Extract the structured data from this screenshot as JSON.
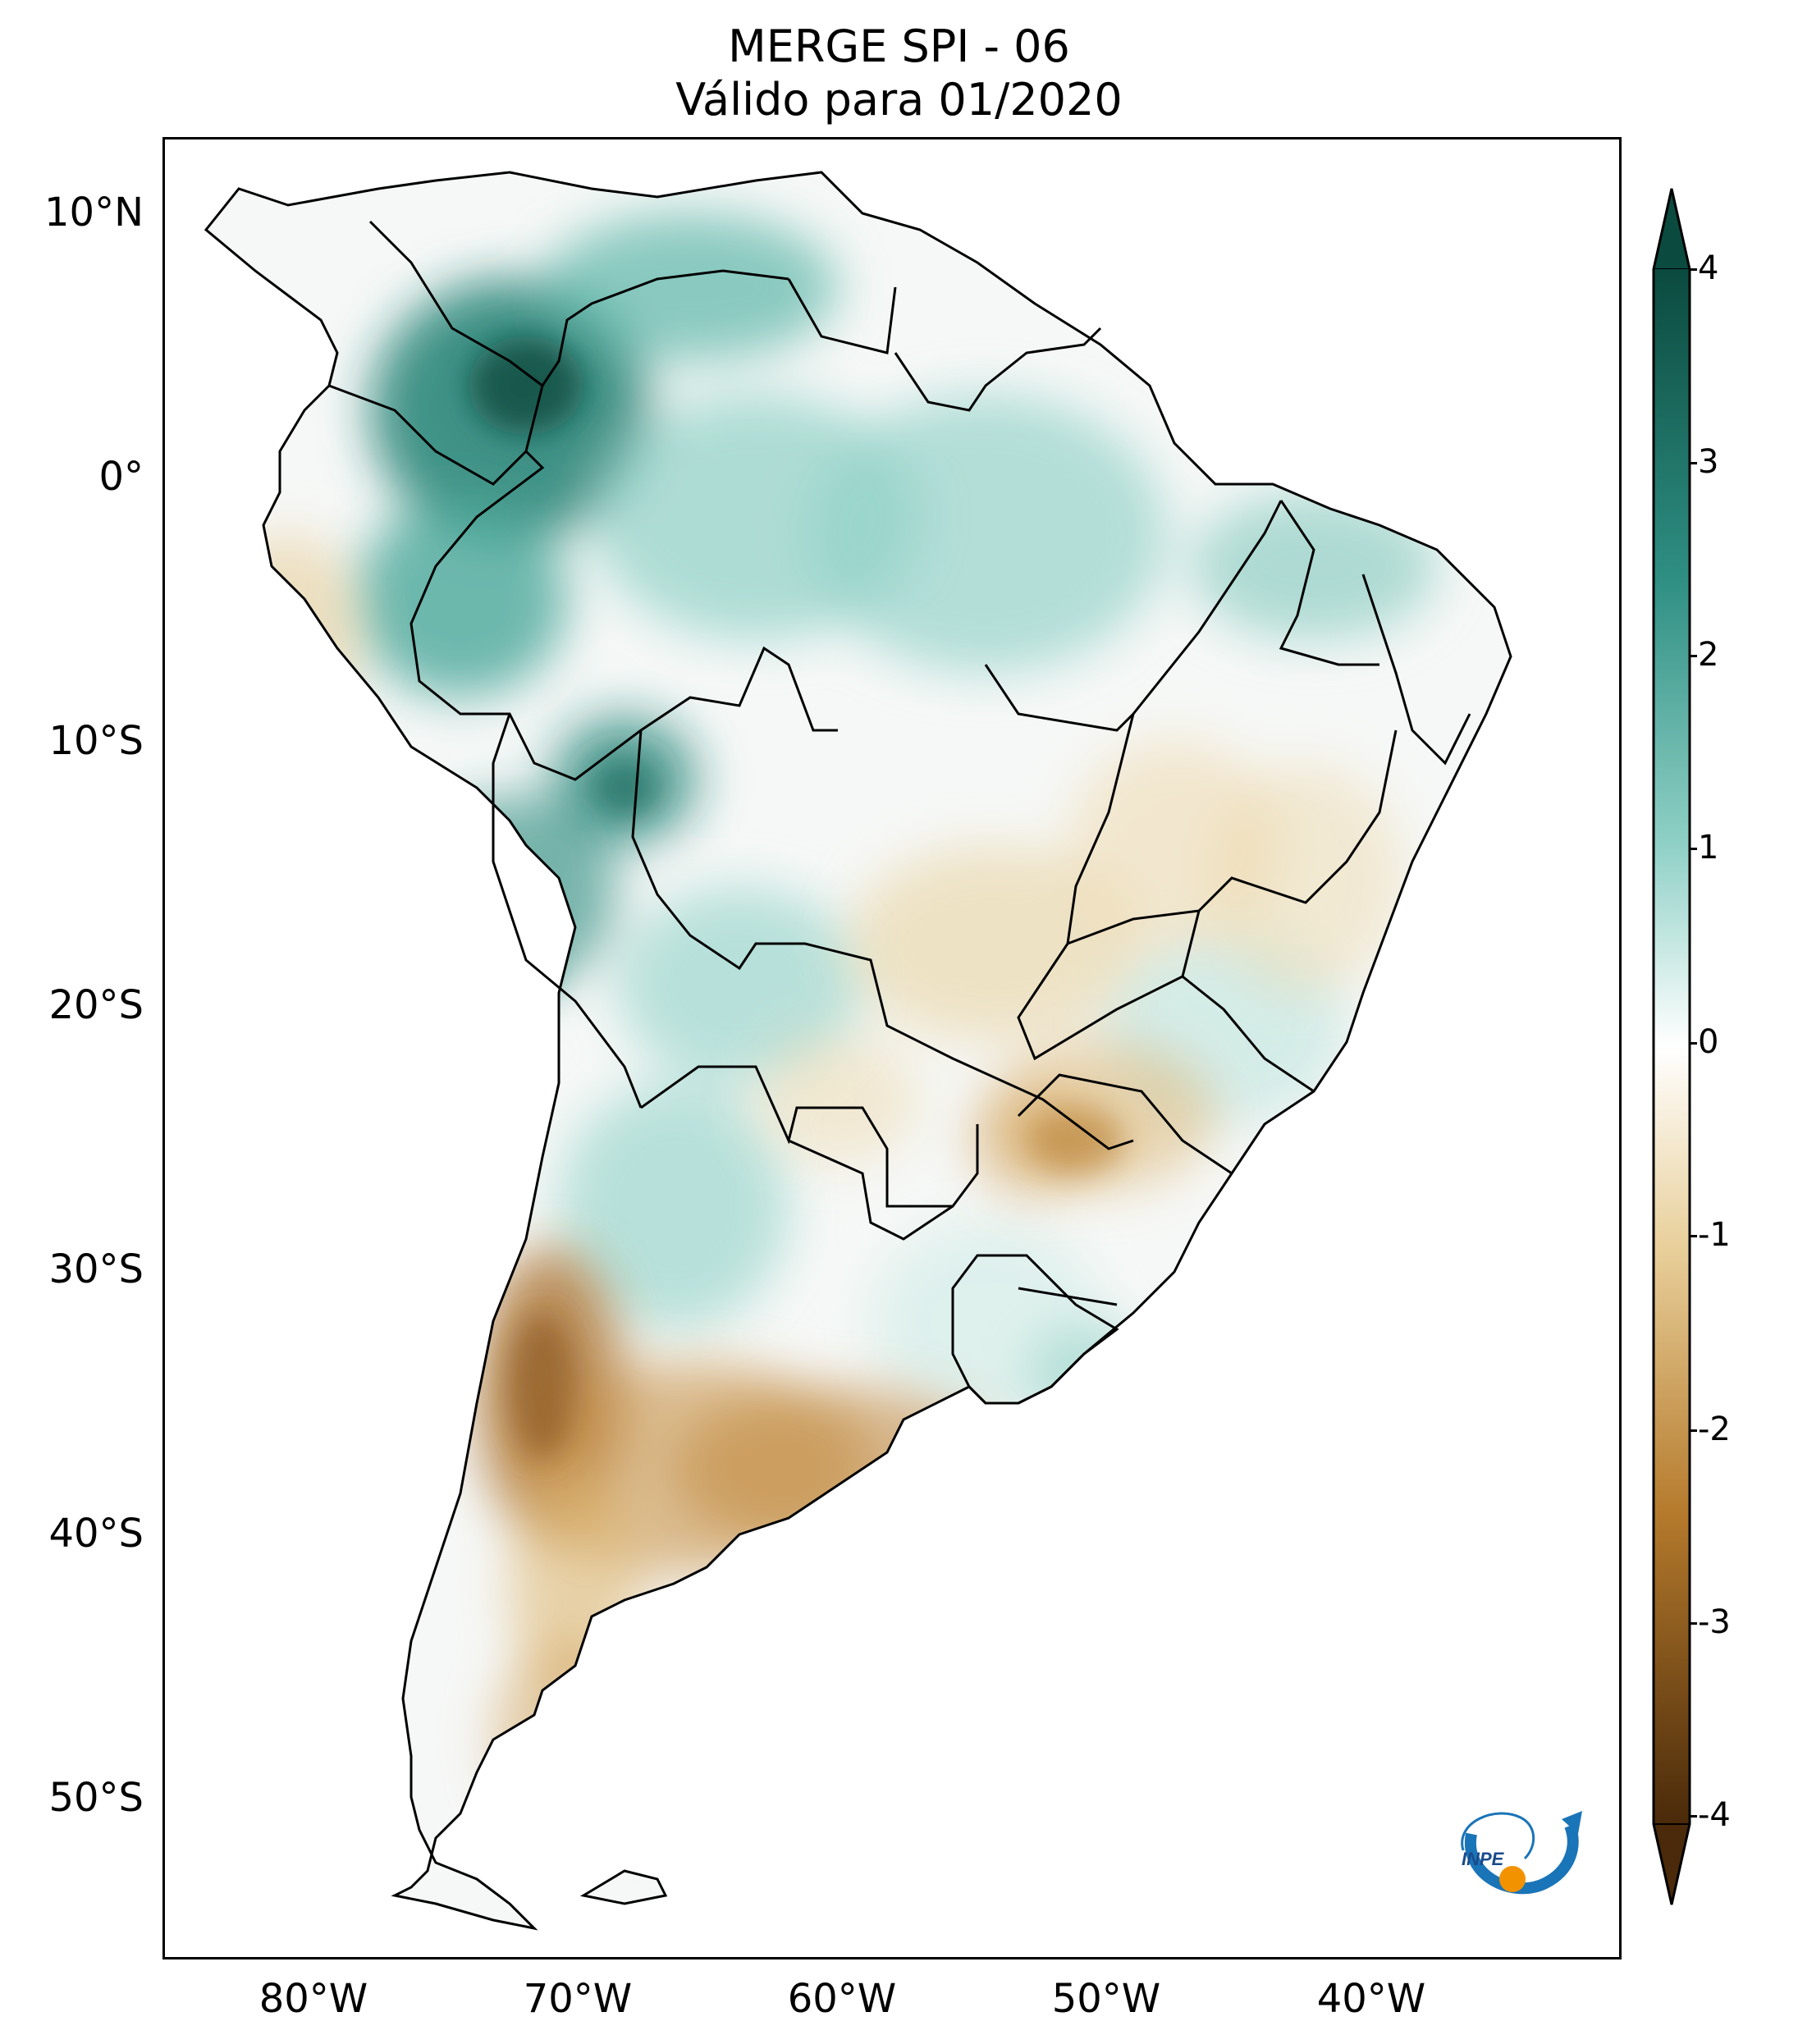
{
  "title": {
    "line1": "MERGE   SPI - 06",
    "line2": "Válido para 01/2020"
  },
  "axes": {
    "lat_labels": [
      "10°N",
      "0°",
      "10°S",
      "20°S",
      "30°S",
      "40°S",
      "50°S"
    ],
    "lat_values": [
      10,
      0,
      -10,
      -20,
      -30,
      -40,
      -50
    ],
    "lon_labels": [
      "80°W",
      "70°W",
      "60°W",
      "50°W",
      "40°W"
    ],
    "lon_values": [
      -80,
      -70,
      -60,
      -50,
      -40
    ],
    "lat_range": [
      -56,
      13
    ],
    "lon_range": [
      -85,
      -29
    ]
  },
  "colorbar": {
    "ticks": [
      "4",
      "3",
      "2",
      "1",
      "0",
      "-1",
      "-2",
      "-3",
      "-4"
    ],
    "tick_values": [
      4,
      3,
      2,
      1,
      0,
      -1,
      -2,
      -3,
      -4
    ],
    "range": [
      -4,
      4
    ],
    "extend": "both",
    "colors": {
      "max": "#0b4a3f",
      "high": "#2f8f83",
      "mid_high": "#8fd0c6",
      "neutral": "#ffffff",
      "mid_low": "#e8cf9a",
      "low": "#b57a2c",
      "min": "#4a2a0a"
    }
  },
  "logo": {
    "text": "INPE",
    "colors": {
      "arc": "#1a74b8",
      "dot": "#f39200"
    }
  }
}
